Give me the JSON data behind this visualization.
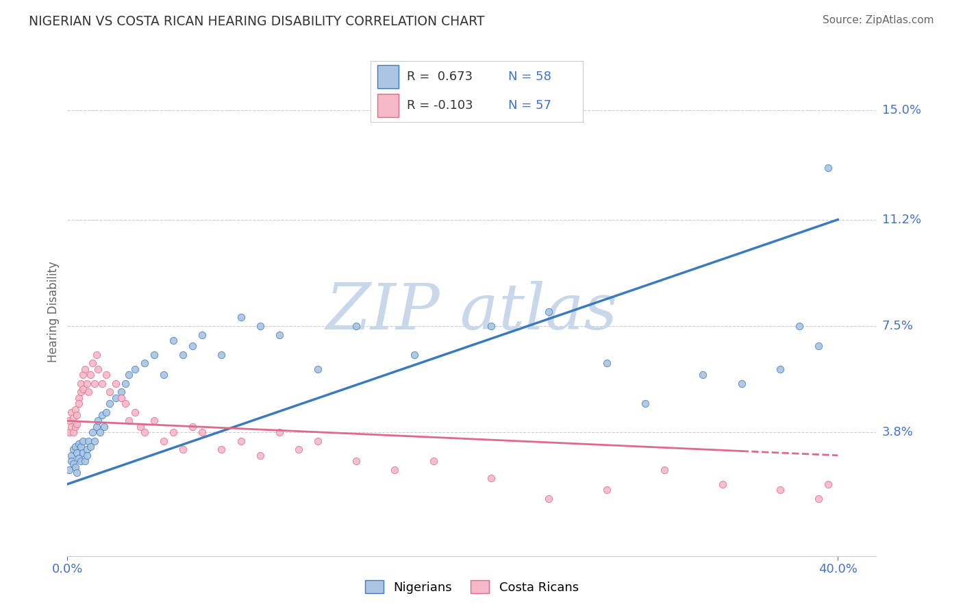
{
  "title": "NIGERIAN VS COSTA RICAN HEARING DISABILITY CORRELATION CHART",
  "source": "Source: ZipAtlas.com",
  "xlabel_ticks": [
    "0.0%",
    "40.0%"
  ],
  "ylabel_ticks": [
    0.038,
    0.075,
    0.112,
    0.15
  ],
  "ylabel_tick_labels": [
    "3.8%",
    "7.5%",
    "11.2%",
    "15.0%"
  ],
  "xlim": [
    0.0,
    0.42
  ],
  "ylim": [
    -0.005,
    0.165
  ],
  "ylabel": "Hearing Disability",
  "nigerian_label": "Nigerians",
  "costarican_label": "Costa Ricans",
  "R_nigerian": 0.673,
  "N_nigerian": 58,
  "R_costarican": -0.103,
  "N_costarican": 57,
  "scatter_color_nigerian": "#aac4e2",
  "scatter_color_costarican": "#f5b8c8",
  "line_color_nigerian": "#3a7abf",
  "line_color_costarican": "#e06888",
  "background_color": "#ffffff",
  "title_color": "#333333",
  "axis_label_color": "#666666",
  "tick_label_color": "#4472c4",
  "source_color": "#666666",
  "watermark_color": "#c8d8ea",
  "grid_color": "#cccccc",
  "nigerian_x": [
    0.001,
    0.002,
    0.002,
    0.003,
    0.003,
    0.004,
    0.004,
    0.005,
    0.005,
    0.006,
    0.006,
    0.007,
    0.007,
    0.008,
    0.008,
    0.009,
    0.01,
    0.01,
    0.011,
    0.012,
    0.013,
    0.014,
    0.015,
    0.016,
    0.017,
    0.018,
    0.019,
    0.02,
    0.022,
    0.025,
    0.028,
    0.03,
    0.032,
    0.035,
    0.04,
    0.045,
    0.05,
    0.055,
    0.06,
    0.065,
    0.07,
    0.08,
    0.09,
    0.1,
    0.11,
    0.13,
    0.15,
    0.18,
    0.22,
    0.25,
    0.28,
    0.3,
    0.33,
    0.35,
    0.37,
    0.38,
    0.39,
    0.395
  ],
  "nigerian_y": [
    0.025,
    0.03,
    0.028,
    0.032,
    0.027,
    0.033,
    0.026,
    0.031,
    0.024,
    0.034,
    0.029,
    0.033,
    0.028,
    0.035,
    0.031,
    0.028,
    0.032,
    0.03,
    0.035,
    0.033,
    0.038,
    0.035,
    0.04,
    0.042,
    0.038,
    0.044,
    0.04,
    0.045,
    0.048,
    0.05,
    0.052,
    0.055,
    0.058,
    0.06,
    0.062,
    0.065,
    0.058,
    0.07,
    0.065,
    0.068,
    0.072,
    0.065,
    0.078,
    0.075,
    0.072,
    0.06,
    0.075,
    0.065,
    0.075,
    0.08,
    0.062,
    0.048,
    0.058,
    0.055,
    0.06,
    0.075,
    0.068,
    0.13
  ],
  "costarican_x": [
    0.001,
    0.001,
    0.002,
    0.002,
    0.003,
    0.003,
    0.004,
    0.004,
    0.005,
    0.005,
    0.006,
    0.006,
    0.007,
    0.007,
    0.008,
    0.008,
    0.009,
    0.01,
    0.011,
    0.012,
    0.013,
    0.014,
    0.015,
    0.016,
    0.018,
    0.02,
    0.022,
    0.025,
    0.028,
    0.03,
    0.032,
    0.035,
    0.038,
    0.04,
    0.045,
    0.05,
    0.055,
    0.06,
    0.065,
    0.07,
    0.08,
    0.09,
    0.1,
    0.11,
    0.12,
    0.13,
    0.15,
    0.17,
    0.19,
    0.22,
    0.25,
    0.28,
    0.31,
    0.34,
    0.37,
    0.39,
    0.395
  ],
  "costarican_y": [
    0.038,
    0.042,
    0.04,
    0.045,
    0.038,
    0.043,
    0.04,
    0.046,
    0.041,
    0.044,
    0.05,
    0.048,
    0.052,
    0.055,
    0.053,
    0.058,
    0.06,
    0.055,
    0.052,
    0.058,
    0.062,
    0.055,
    0.065,
    0.06,
    0.055,
    0.058,
    0.052,
    0.055,
    0.05,
    0.048,
    0.042,
    0.045,
    0.04,
    0.038,
    0.042,
    0.035,
    0.038,
    0.032,
    0.04,
    0.038,
    0.032,
    0.035,
    0.03,
    0.038,
    0.032,
    0.035,
    0.028,
    0.025,
    0.028,
    0.022,
    0.015,
    0.018,
    0.025,
    0.02,
    0.018,
    0.015,
    0.02
  ],
  "nigerian_line_x": [
    0.0,
    0.4
  ],
  "nigerian_line_y": [
    0.02,
    0.112
  ],
  "costarican_line_x": [
    0.0,
    0.4
  ],
  "costarican_line_y": [
    0.042,
    0.03
  ]
}
